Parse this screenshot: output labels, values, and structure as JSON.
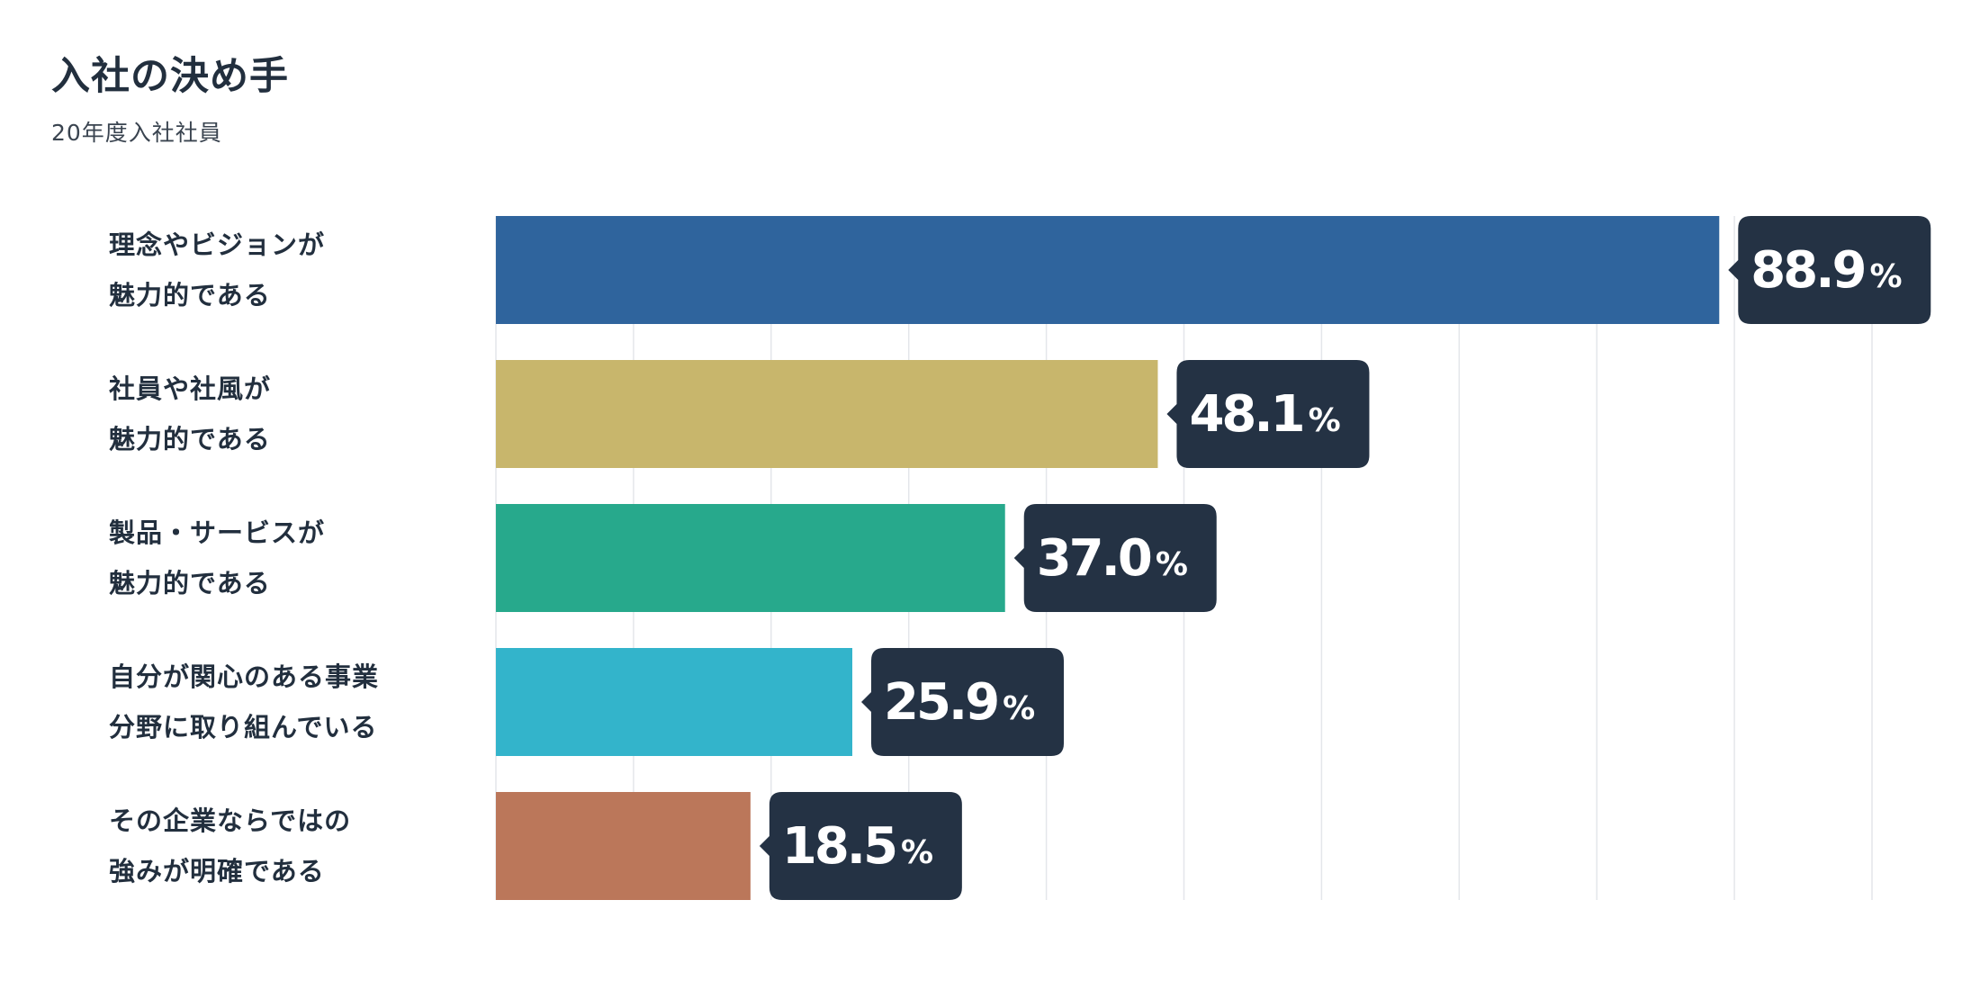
{
  "header": {
    "title": "入社の決め手",
    "subtitle": "20年度入社社員"
  },
  "chart_data": {
    "type": "bar",
    "orientation": "horizontal",
    "title": "入社の決め手",
    "subtitle": "20年度入社社員",
    "categories": [
      [
        "理念やビジョンが",
        "魅力的である"
      ],
      [
        "社員や社風が",
        "魅力的である"
      ],
      [
        "製品・サービスが",
        "魅力的である"
      ],
      [
        "自分が関心のある事業",
        "分野に取り組んでいる"
      ],
      [
        "その企業ならではの",
        "強みが明確である"
      ]
    ],
    "values": [
      88.9,
      48.1,
      37.0,
      25.9,
      18.5
    ],
    "value_labels": [
      "88.9",
      "48.1",
      "37.0",
      "25.9",
      "18.5"
    ],
    "unit": "%",
    "colors": [
      "#2f649d",
      "#c8b66c",
      "#27a98c",
      "#33b4cb",
      "#bb775a"
    ],
    "label_bg": "#243244",
    "xlim": [
      0,
      100
    ],
    "grid": true,
    "legend": "none"
  }
}
